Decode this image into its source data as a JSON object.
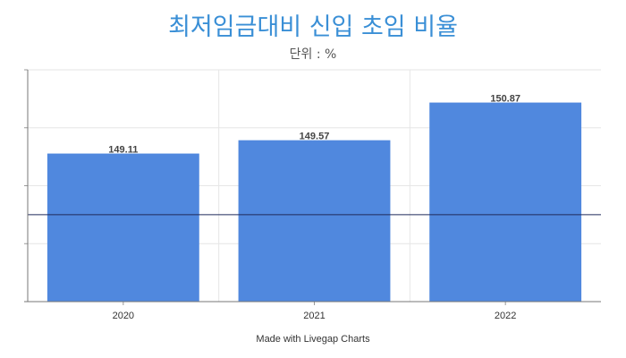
{
  "title": "최저임금대비 신입 초임 비율",
  "subtitle": "단위 : %",
  "footer": "Made with Livegap Charts",
  "colors": {
    "bar": "#5088de",
    "title": "#3a8fd6",
    "reference_line": "#1f2a5a"
  },
  "chart_data": {
    "type": "bar",
    "categories": [
      "2020",
      "2021",
      "2022"
    ],
    "values": [
      149.11,
      149.57,
      150.87
    ],
    "data_labels": [
      "149.11",
      "149.57",
      "150.87"
    ],
    "reference_line": 147,
    "ylim": [
      144,
      152
    ],
    "grid": true,
    "legend": "none"
  }
}
